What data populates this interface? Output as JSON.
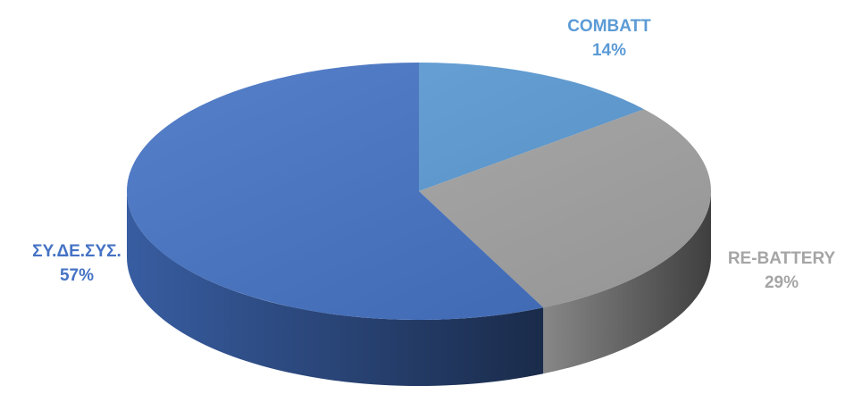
{
  "chart_data": {
    "type": "pie",
    "style": "3d",
    "title": "",
    "slices": [
      {
        "label": "COMBATT",
        "value": 14,
        "percent_label": "14%",
        "color": "#5b9bd5"
      },
      {
        "label": "RE-BATTERY",
        "value": 29,
        "percent_label": "29%",
        "color": "#a5a5a5"
      },
      {
        "label": "ΣΥ.ΔΕ.ΣΥΣ.",
        "value": 57,
        "percent_label": "57%",
        "color": "#4472c4"
      }
    ],
    "legend": "none",
    "data_labels": "outside"
  }
}
